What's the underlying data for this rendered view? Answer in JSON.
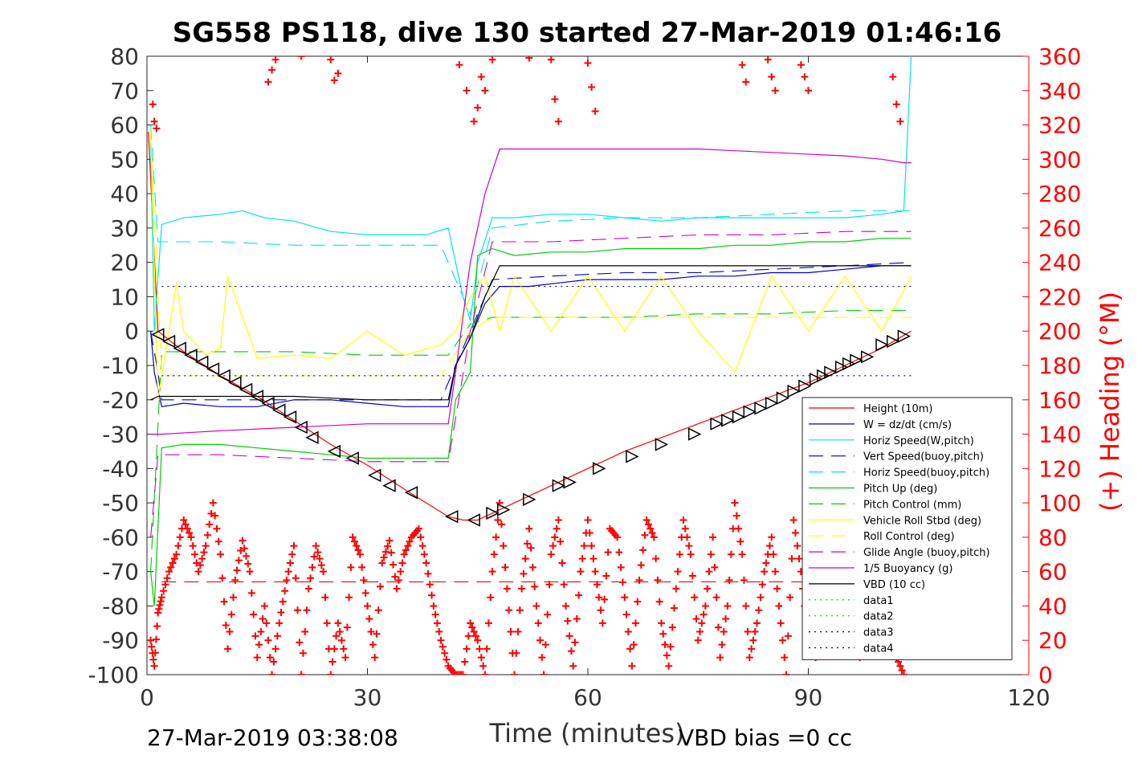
{
  "chart_data": {
    "type": "line",
    "title": "SG558 PS118, dive 130 started 27-Mar-2019 01:46:16",
    "xlabel": "Time (minutes)",
    "ylabel_right": "(+) Heading (°M)",
    "xlim": [
      0,
      120
    ],
    "ylim": [
      -100,
      80
    ],
    "ylim_right": [
      0,
      360
    ],
    "x_ticks": [
      0,
      30,
      60,
      90,
      120
    ],
    "y_ticks": [
      -100,
      -90,
      -80,
      -70,
      -60,
      -50,
      -40,
      -30,
      -20,
      -10,
      0,
      10,
      20,
      30,
      40,
      50,
      60,
      70,
      80
    ],
    "y_ticks_right": [
      0,
      20,
      40,
      60,
      80,
      100,
      120,
      140,
      160,
      180,
      200,
      220,
      240,
      260,
      280,
      300,
      320,
      340,
      360
    ],
    "footer_left": "27-Mar-2019 03:38:08",
    "footer_right": "VBD bias =0 cc",
    "legend_position": "lower-right",
    "series": [
      {
        "name": "Height (10m)",
        "color": "#ff0000",
        "style": "solid",
        "x": [
          0.2,
          1.5,
          5,
          10,
          15,
          20,
          25,
          30,
          35,
          38,
          41,
          43,
          45,
          47,
          50,
          55,
          60,
          65,
          70,
          75,
          80,
          85,
          90,
          95,
          100,
          104
        ],
        "y": [
          58,
          0,
          -6,
          -13,
          -19,
          -26,
          -33,
          -39,
          -46,
          -50,
          -54,
          -55,
          -55,
          -53,
          -50,
          -45,
          -40,
          -35,
          -31,
          -27,
          -23,
          -19,
          -15,
          -10,
          -5,
          0
        ]
      },
      {
        "name": "W = dz/dt (cm/s)",
        "color": "#0000cc",
        "style": "solid",
        "x": [
          0.5,
          1,
          2,
          5,
          10,
          15,
          20,
          25,
          30,
          35,
          38,
          41,
          42,
          44,
          46,
          48,
          52,
          56,
          60,
          65,
          70,
          75,
          80,
          85,
          90,
          95,
          100,
          104
        ],
        "y": [
          0,
          -12,
          -22,
          -21,
          -22,
          -22,
          -20,
          -20,
          -21,
          -22,
          -22,
          -22,
          -10,
          -2,
          8,
          13,
          13,
          14,
          15,
          15,
          15,
          16,
          16,
          17,
          17,
          18,
          19,
          19
        ]
      },
      {
        "name": "Horiz Speed(W,pitch)",
        "color": "#00e5e5",
        "style": "solid",
        "x": [
          0.5,
          1,
          2,
          5,
          10,
          13,
          16,
          20,
          25,
          30,
          35,
          38,
          41,
          42,
          43,
          44,
          45,
          47,
          50,
          55,
          60,
          65,
          70,
          75,
          80,
          85,
          90,
          95,
          100,
          103,
          104
        ],
        "y": [
          55,
          0,
          31,
          33,
          34,
          35,
          33,
          32,
          29,
          28,
          28,
          28,
          30,
          20,
          10,
          3,
          20,
          33,
          33,
          34,
          34,
          33,
          32,
          33,
          33,
          33,
          33,
          33,
          34,
          35,
          80
        ]
      },
      {
        "name": "Vert Speed(buoy,pitch)",
        "color": "#0000cc",
        "style": "dashed",
        "x": [
          0.5,
          1.5,
          2,
          10,
          20,
          30,
          40,
          42,
          44,
          47,
          55,
          65,
          75,
          85,
          95,
          104
        ],
        "y": [
          0,
          -12,
          -20,
          -20,
          -20,
          -20,
          -20,
          -10,
          0,
          15,
          16,
          17,
          17,
          18,
          19,
          20
        ]
      },
      {
        "name": "Horiz Speed(buoy,pitch)",
        "color": "#00e5e5",
        "style": "dashed",
        "x": [
          0.5,
          1.5,
          2,
          10,
          20,
          30,
          40,
          42,
          44,
          47,
          55,
          65,
          75,
          85,
          95,
          104
        ],
        "y": [
          60,
          26,
          26,
          26,
          25,
          25,
          25,
          15,
          5,
          30,
          32,
          33,
          33,
          34,
          35,
          35
        ]
      },
      {
        "name": "Pitch Up (deg)",
        "color": "#00cc00",
        "style": "solid",
        "x": [
          0.5,
          1,
          2,
          5,
          10,
          15,
          20,
          25,
          30,
          35,
          38,
          41,
          42,
          44,
          45,
          47,
          50,
          55,
          60,
          65,
          70,
          75,
          80,
          85,
          90,
          95,
          100,
          104
        ],
        "y": [
          -70,
          -80,
          -34,
          -33,
          -33,
          -34,
          -35,
          -36,
          -37,
          -37,
          -37,
          -37,
          -20,
          -12,
          22,
          24,
          22,
          23,
          23,
          24,
          24,
          24,
          25,
          25,
          26,
          26,
          27,
          27
        ]
      },
      {
        "name": "Pitch Control (mm)",
        "color": "#00cc00",
        "style": "dashed",
        "x": [
          0.5,
          2,
          10,
          20,
          30,
          40,
          41,
          44,
          47,
          55,
          65,
          75,
          85,
          95,
          104
        ],
        "y": [
          -70,
          -6,
          -6,
          -6,
          -7,
          -7,
          -7,
          2,
          4,
          4,
          4,
          5,
          5,
          6,
          6
        ]
      },
      {
        "name": "Vehicle Roll Stbd (deg)",
        "color": "#ffff00",
        "style": "solid",
        "x": [
          0.5,
          1.5,
          3,
          4,
          5,
          8,
          10,
          11,
          15,
          20,
          25,
          30,
          35,
          40,
          42,
          44,
          46,
          48,
          50,
          55,
          60,
          65,
          70,
          75,
          80,
          85,
          90,
          95,
          100,
          104
        ],
        "y": [
          58,
          -20,
          0,
          14,
          0,
          -7,
          -5,
          16,
          -8,
          -7,
          -8,
          0,
          -7,
          -4,
          0,
          10,
          16,
          0,
          16,
          0,
          16,
          0,
          16,
          0,
          -12,
          16,
          0,
          16,
          0,
          16
        ]
      },
      {
        "name": "Roll Control (deg)",
        "color": "#ffff00",
        "style": "dashed",
        "x": [
          0.5,
          2,
          10,
          20,
          30,
          40,
          44,
          47,
          55,
          65,
          75,
          85,
          95,
          104
        ],
        "y": [
          58,
          -13,
          -13,
          -13,
          -13,
          -13,
          0,
          4,
          4,
          4,
          4,
          4,
          4,
          4
        ]
      },
      {
        "name": "Glide Angle (buoy,pitch)",
        "color": "#cc00cc",
        "style": "dashed",
        "x": [
          0.5,
          1.5,
          2,
          10,
          20,
          30,
          40,
          41,
          44,
          47,
          55,
          65,
          75,
          85,
          95,
          104
        ],
        "y": [
          -60,
          -36,
          -36,
          -36,
          -37,
          -38,
          -38,
          -38,
          0,
          26,
          26,
          27,
          28,
          28,
          29,
          29
        ]
      },
      {
        "name": "1/5 Buoyancy (g)",
        "color": "#cc00cc",
        "style": "solid",
        "x": [
          0.5,
          2,
          10,
          20,
          30,
          35,
          40,
          41,
          42,
          44,
          46,
          48,
          55,
          65,
          75,
          85,
          95,
          100,
          103,
          104
        ],
        "y": [
          -30,
          -30,
          -29,
          -28,
          -27,
          -27,
          -27,
          -27,
          -12,
          20,
          40,
          53,
          53,
          53,
          53,
          52,
          51,
          50,
          49,
          49
        ]
      },
      {
        "name": "VBD (10 cc)",
        "color": "#000000",
        "style": "solid",
        "x": [
          0.5,
          1.5,
          2,
          10,
          20,
          30,
          40,
          41,
          42,
          44,
          46,
          48,
          55,
          65,
          75,
          85,
          95,
          104
        ],
        "y": [
          -20,
          -19,
          -19,
          -19,
          -19,
          -20,
          -20,
          -20,
          -10,
          -2,
          10,
          19,
          19,
          19,
          19,
          19,
          19,
          19
        ]
      },
      {
        "name": "data1",
        "color": "#00cc00",
        "style": "dotted",
        "x": [],
        "y": []
      },
      {
        "name": "data2",
        "color": "#00cc00",
        "style": "dotted",
        "x": [],
        "y": []
      },
      {
        "name": "data3",
        "color": "#000080",
        "style": "dotted",
        "x": [
          2,
          104
        ],
        "y": [
          13,
          13
        ]
      },
      {
        "name": "data4",
        "color": "#000080",
        "style": "dotted",
        "x": [
          2,
          104
        ],
        "y": [
          -13,
          -13
        ]
      }
    ],
    "constant_lines": [
      {
        "color": "#cc0000",
        "style": "dashed",
        "x": [
          2,
          104
        ],
        "y": [
          -73,
          -73
        ]
      }
    ],
    "triangle_markers": {
      "color": "#000000",
      "left_x": [
        1.5,
        3,
        4.5,
        6,
        7.5,
        9,
        10.5,
        12,
        13.5,
        15,
        16.5,
        18,
        19.5,
        21,
        22.5,
        25.5,
        28,
        31,
        33,
        36,
        41.5,
        44.5
      ],
      "left_y": [
        -1,
        -3,
        -5,
        -7,
        -9,
        -11,
        -13,
        -15,
        -17,
        -19,
        -21,
        -23,
        -25,
        -28,
        -31,
        -35,
        -37,
        -42,
        -45,
        -47,
        -54,
        -55
      ],
      "right_x": [
        47,
        48.5,
        52,
        56,
        57.5,
        61.5,
        66,
        70,
        74.5,
        77.5,
        79,
        80.5,
        82,
        83.5,
        85,
        86.5,
        88,
        89.5,
        91,
        92,
        93,
        94.5,
        95.5,
        96.5,
        98,
        100,
        101.5,
        103
      ],
      "right_y": [
        -53,
        -52,
        -49,
        -45,
        -44,
        -40,
        -36.5,
        -33,
        -30,
        -27,
        -26,
        -25,
        -23.5,
        -22.5,
        -21,
        -19.5,
        -17.5,
        -16,
        -14,
        -13,
        -12,
        -10.5,
        -9.5,
        -8.5,
        -7.5,
        -4,
        -3,
        -1.5
      ]
    },
    "heading": {
      "axis": "right",
      "color": "#ff0000",
      "marker": "plus",
      "x": [
        0.5,
        1.0,
        1.5,
        2.0,
        3.0,
        4.0,
        5.0,
        6.0,
        7.0,
        8.0,
        9.0,
        10.0,
        11.0,
        12.0,
        13.0,
        14.0,
        15.0,
        16.0,
        17.0,
        18.0,
        19.0,
        20.0,
        21.0,
        22.0,
        23.0,
        24.0,
        25.0,
        26.0,
        27.0,
        28.0,
        29.0,
        30.0,
        31.0,
        32.0,
        33.0,
        34.0,
        35.0,
        36.0,
        37.0,
        38.0,
        39.0,
        40.0,
        41.0,
        42.0,
        43.0,
        44.0,
        45.0,
        46.0,
        47.0,
        48.0,
        49.0,
        50.0,
        51.0,
        52.0,
        53.0,
        54.0,
        55.0,
        56.0,
        57.0,
        58.0,
        59.0,
        60.0,
        61.0,
        62.0,
        63.0,
        64.0,
        65.0,
        66.0,
        67.0,
        68.0,
        69.0,
        70.0,
        71.0,
        72.0,
        73.0,
        74.0,
        75.0,
        76.0,
        77.0,
        78.0,
        79.0,
        80.0,
        81.0,
        82.0,
        83.0,
        84.0,
        85.0,
        86.0,
        87.0,
        88.0,
        89.0,
        90.0,
        91.0,
        92.0,
        93.0,
        94.0,
        95.0,
        96.0,
        97.0,
        98.0,
        99.0,
        100.0,
        101.0,
        102.0,
        103.0
      ],
      "y": [
        20,
        5,
        36,
        45,
        60,
        70,
        90,
        80,
        60,
        75,
        100,
        70,
        15,
        55,
        78,
        60,
        10,
        40,
        0,
        30,
        55,
        75,
        0,
        50,
        75,
        60,
        0,
        30,
        10,
        80,
        70,
        40,
        10,
        65,
        78,
        50,
        70,
        80,
        85,
        65,
        40,
        20,
        5,
        0,
        0,
        30,
        20,
        0,
        60,
        100,
        50,
        0,
        50,
        85,
        40,
        0,
        70,
        90,
        40,
        5,
        60,
        90,
        60,
        30,
        85,
        80,
        45,
        5,
        55,
        90,
        80,
        30,
        5,
        50,
        90,
        70,
        20,
        40,
        80,
        10,
        40,
        100,
        70,
        10,
        30,
        60,
        80,
        40,
        0,
        90,
        60,
        20,
        10,
        50,
        70,
        90,
        60,
        30,
        10,
        20,
        40,
        50,
        30,
        10,
        0
      ],
      "top_clusters": [
        {
          "x": [
            0.8,
            1.0,
            1.3
          ],
          "y": [
            332,
            322,
            318
          ]
        },
        {
          "x": [
            16.5,
            17.0,
            17.5
          ],
          "y": [
            345,
            352,
            358
          ]
        },
        {
          "x": [
            21.0
          ],
          "y": [
            360
          ]
        },
        {
          "x": [
            25.0,
            25.5,
            26.0
          ],
          "y": [
            358,
            346,
            350
          ]
        },
        {
          "x": [
            42.5,
            43.5,
            44.5,
            45.0,
            45.5,
            46.0,
            47.0
          ],
          "y": [
            355,
            340,
            322,
            330,
            348,
            340,
            358
          ]
        },
        {
          "x": [
            52.0
          ],
          "y": [
            359
          ]
        },
        {
          "x": [
            55.0,
            55.5,
            56.0
          ],
          "y": [
            358,
            335,
            322
          ]
        },
        {
          "x": [
            60.0,
            60.5,
            61.0
          ],
          "y": [
            356,
            342,
            328
          ]
        },
        {
          "x": [
            81.0,
            81.5
          ],
          "y": [
            355,
            345
          ]
        },
        {
          "x": [
            84.5,
            85.0,
            85.5
          ],
          "y": [
            358,
            348,
            340
          ]
        },
        {
          "x": [
            89.0,
            89.5,
            90.0
          ],
          "y": [
            355,
            348,
            340
          ]
        },
        {
          "x": [
            101.5,
            102.0,
            102.5
          ],
          "y": [
            348,
            332,
            322
          ]
        }
      ]
    }
  }
}
